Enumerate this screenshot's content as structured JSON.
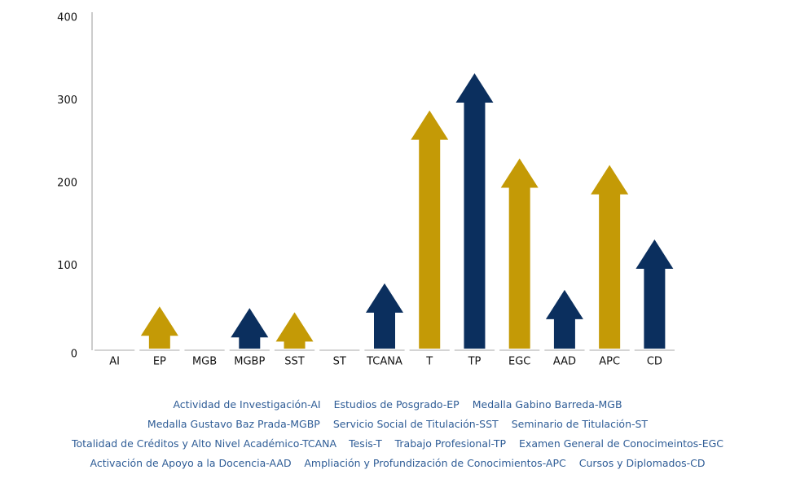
{
  "chart_data": {
    "type": "arrow-bar",
    "categories": [
      "AI",
      "EP",
      "MGB",
      "MGBP",
      "SST",
      "ST",
      "TCANA",
      "T",
      "TP",
      "EGC",
      "AAD",
      "APC",
      "CD"
    ],
    "values": [
      0,
      51,
      0,
      49,
      44,
      0,
      79,
      288,
      333,
      230,
      71,
      222,
      132
    ],
    "colors": [
      "#0b2f5e",
      "#c49a06",
      "#0b2f5e",
      "#0b2f5e",
      "#c49a06",
      "#0b2f5e",
      "#0b2f5e",
      "#c49a06",
      "#0b2f5e",
      "#c49a06",
      "#0b2f5e",
      "#c49a06",
      "#0b2f5e"
    ],
    "ylim": [
      0,
      400
    ],
    "yticks": [
      0,
      100,
      200,
      300,
      400
    ],
    "grid": false,
    "legend": [
      [
        "Actividad de Investigación-AI",
        "Estudios de Posgrado-EP",
        "Medalla Gabino Barreda-MGB"
      ],
      [
        "Medalla Gustavo Baz Prada-MGBP",
        "Servicio Social de Titulación-SST",
        "Seminario de Titulación-ST"
      ],
      [
        "Totalidad de Créditos y Alto Nivel Académico-TCANA",
        "Tesis-T",
        "Trabajo Profesional-TP",
        "Examen General de Conocimeintos-EGC"
      ],
      [
        "Activación de Apoyo a la Docencia-AAD",
        "Ampliación y Profundización de Conocimientos-APC",
        "Cursos y Diplomados-CD"
      ]
    ]
  }
}
